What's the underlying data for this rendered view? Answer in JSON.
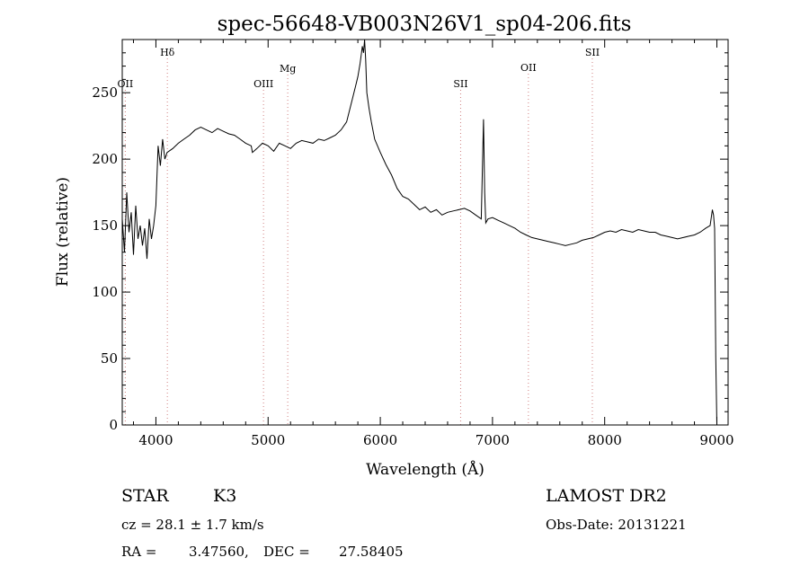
{
  "chart_data": {
    "type": "line",
    "title": "spec-56648-VB003N26V1_sp04-206.fits",
    "xlabel": "Wavelength (Å)",
    "ylabel": "Flux (relative)",
    "xlim": [
      3700,
      9100
    ],
    "ylim": [
      0,
      290
    ],
    "x_ticks": [
      4000,
      5000,
      6000,
      7000,
      8000,
      9000
    ],
    "y_ticks": [
      0,
      50,
      100,
      150,
      200,
      250
    ],
    "grid": false,
    "line_color": "#000000",
    "marker_color": "#000000",
    "series": [
      {
        "x": [
          3700,
          3720,
          3740,
          3760,
          3780,
          3800,
          3820,
          3840,
          3860,
          3880,
          3900,
          3920,
          3940,
          3960,
          3980,
          4000,
          4020,
          4040,
          4060,
          4080,
          4100,
          4150,
          4200,
          4250,
          4300,
          4350,
          4400,
          4450,
          4500,
          4550,
          4600,
          4650,
          4700,
          4750,
          4800,
          4850,
          4860,
          4900,
          4950,
          5000,
          5050,
          5100,
          5150,
          5200,
          5250,
          5300,
          5350,
          5400,
          5450,
          5500,
          5550,
          5600,
          5650,
          5700,
          5750,
          5780,
          5800,
          5820,
          5840,
          5850,
          5860,
          5870,
          5880,
          5900,
          5920,
          5950,
          6000,
          6050,
          6100,
          6150,
          6200,
          6250,
          6300,
          6350,
          6400,
          6450,
          6500,
          6550,
          6600,
          6650,
          6700,
          6750,
          6800,
          6850,
          6900,
          6920,
          6930,
          6940,
          6960,
          7000,
          7050,
          7100,
          7150,
          7200,
          7250,
          7300,
          7350,
          7400,
          7450,
          7500,
          7550,
          7600,
          7650,
          7700,
          7750,
          7800,
          7850,
          7900,
          7950,
          8000,
          8050,
          8100,
          8150,
          8200,
          8250,
          8300,
          8350,
          8400,
          8450,
          8500,
          8550,
          8600,
          8650,
          8700,
          8750,
          8800,
          8850,
          8900,
          8940,
          8960,
          8970,
          8980,
          8990,
          9000
        ],
        "y": [
          155,
          130,
          175,
          145,
          160,
          128,
          165,
          140,
          150,
          135,
          148,
          125,
          155,
          140,
          150,
          165,
          210,
          195,
          215,
          200,
          205,
          208,
          212,
          215,
          218,
          222,
          224,
          222,
          220,
          223,
          221,
          219,
          218,
          215,
          212,
          210,
          205,
          208,
          212,
          210,
          206,
          212,
          210,
          208,
          212,
          214,
          213,
          212,
          215,
          214,
          216,
          218,
          222,
          228,
          245,
          255,
          262,
          272,
          285,
          280,
          290,
          275,
          250,
          238,
          228,
          215,
          205,
          196,
          188,
          178,
          172,
          170,
          166,
          162,
          164,
          160,
          162,
          158,
          160,
          161,
          162,
          163,
          161,
          158,
          155,
          230,
          175,
          152,
          155,
          156,
          154,
          152,
          150,
          148,
          145,
          143,
          141,
          140,
          139,
          138,
          137,
          136,
          135,
          136,
          137,
          139,
          140,
          141,
          143,
          145,
          146,
          145,
          147,
          146,
          145,
          147,
          146,
          145,
          145,
          143,
          142,
          141,
          140,
          141,
          142,
          143,
          145,
          148,
          150,
          162,
          158,
          148,
          50,
          0
        ]
      }
    ],
    "line_markers": [
      {
        "label": "OII",
        "x": 3727
      },
      {
        "label": "Hδ",
        "x": 4102
      },
      {
        "label": "OIII",
        "x": 4959
      },
      {
        "label": "Mg",
        "x": 5175
      },
      {
        "label": "SII",
        "x": 6716
      },
      {
        "label": "OII",
        "x": 7320
      },
      {
        "label": "SII",
        "x": 7890
      }
    ]
  },
  "info": {
    "class_label": "STAR",
    "subclass": "K3",
    "survey": "LAMOST DR2",
    "cz": "cz = 28.1 ± 1.7 km/s",
    "obs_date": "Obs-Date: 20131221",
    "ra_label": "RA =",
    "ra_value": "3.47560,",
    "dec_label": "DEC =",
    "dec_value": "27.58405"
  }
}
